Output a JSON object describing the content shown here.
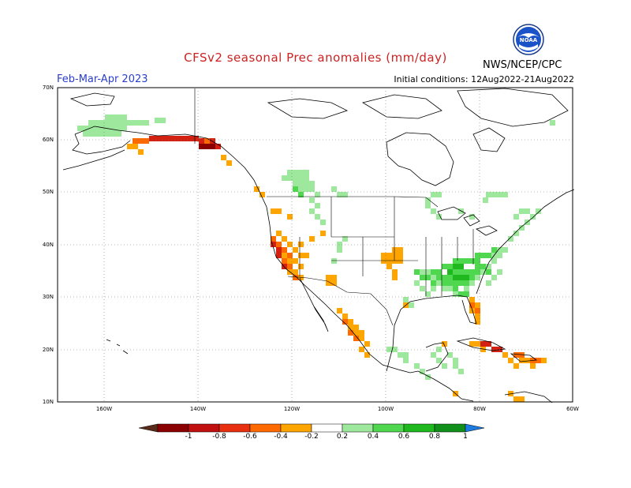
{
  "title": "CFSv2 seasonal Prec anomalies (mm/day)",
  "season": "Feb-Mar-Apr 2023",
  "initial_conditions": "Initial conditions: 12Aug2022-21Aug2022",
  "agency": "NWS/NCEP/CPC",
  "logo_text": "NOAA",
  "lat_labels": [
    "70N",
    "60N",
    "50N",
    "40N",
    "30N",
    "20N",
    "10N"
  ],
  "lon_labels": [
    "160W",
    "140W",
    "120W",
    "100W",
    "80W",
    "60W"
  ],
  "colorbar": {
    "labels": [
      "-1",
      "-0.8",
      "-0.6",
      "-0.4",
      "-0.2",
      "0.2",
      "0.4",
      "0.6",
      "0.8",
      "1"
    ],
    "colors": [
      "#8b0000",
      "#c01010",
      "#e83010",
      "#ff6a00",
      "#ffa500",
      "#ffffff",
      "#9ee89e",
      "#4fd84f",
      "#1fb81f",
      "#10901a"
    ],
    "low_extend_color": "#5a2a1a",
    "high_extend_color": "#1e7be0"
  },
  "colors": {
    "wet_light": "#9ee89e",
    "wet_mid": "#4fd84f",
    "wet_strong": "#1fb81f",
    "dry_light": "#ffa500",
    "dry_mid": "#ff6a00",
    "dry_strong": "#d42010",
    "dry_extreme": "#8b0000"
  }
}
